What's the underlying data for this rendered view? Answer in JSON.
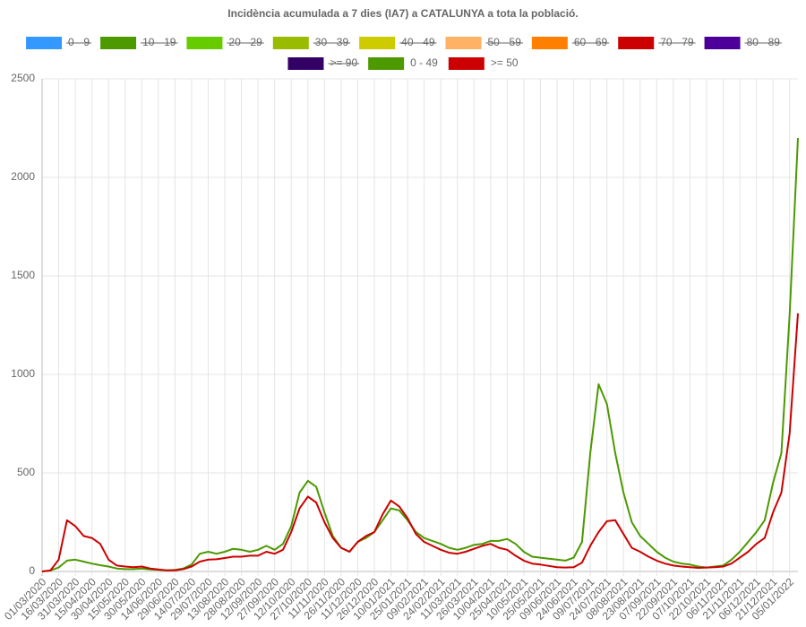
{
  "chart_data": {
    "type": "line",
    "title": "Incidència acumulada a 7 dies (IA7) a CATALUNYA a tota la població.",
    "categories": [
      "01/03/2020",
      null,
      "16/03/2020",
      null,
      "31/03/2020",
      null,
      "15/04/2020",
      null,
      "30/04/2020",
      null,
      "15/05/2020",
      null,
      "30/05/2020",
      null,
      "14/06/2020",
      null,
      "29/06/2020",
      null,
      "14/07/2020",
      null,
      "29/07/2020",
      null,
      "13/08/2020",
      null,
      "28/08/2020",
      null,
      "12/09/2020",
      null,
      "27/09/2020",
      null,
      "12/10/2020",
      null,
      "27/10/2020",
      null,
      "11/11/2020",
      null,
      "26/11/2020",
      null,
      "11/12/2020",
      null,
      "26/12/2020",
      null,
      "10/01/2021",
      null,
      "25/01/2021",
      null,
      "09/02/2021",
      null,
      "24/02/2021",
      null,
      "11/03/2021",
      null,
      "26/03/2021",
      null,
      "10/04/2021",
      null,
      "25/04/2021",
      null,
      "10/05/2021",
      null,
      "25/05/2021",
      null,
      "09/06/2021",
      null,
      "24/06/2021",
      null,
      "09/07/2021",
      null,
      "24/07/2021",
      null,
      "08/08/2021",
      null,
      "23/08/2021",
      null,
      "07/09/2021",
      null,
      "22/09/2021",
      null,
      "07/10/2021",
      null,
      "22/10/2021",
      null,
      "06/11/2021",
      null,
      "21/11/2021",
      null,
      "06/12/2021",
      null,
      "21/12/2021",
      null,
      "05/01/2022",
      null
    ],
    "series": [
      {
        "name": "0 - 9",
        "color": "#3399ff",
        "hidden": true
      },
      {
        "name": "10 - 19",
        "color": "#4c9900",
        "hidden": true
      },
      {
        "name": "20 - 29",
        "color": "#66cc00",
        "hidden": true
      },
      {
        "name": "30 - 39",
        "color": "#99bb00",
        "hidden": true
      },
      {
        "name": "40 - 49",
        "color": "#cccc00",
        "hidden": true
      },
      {
        "name": "50 - 59",
        "color": "#ffb266",
        "hidden": true
      },
      {
        "name": "60 - 69",
        "color": "#ff8000",
        "hidden": true
      },
      {
        "name": "70 - 79",
        "color": "#cc0000",
        "hidden": true
      },
      {
        "name": "80 - 89",
        "color": "#4c0099",
        "hidden": true
      },
      {
        "name": ">= 90",
        "color": "#330066",
        "hidden": true
      },
      {
        "name": "0 - 49",
        "color": "#4c9900",
        "values": [
          0,
          5,
          20,
          55,
          60,
          50,
          40,
          32,
          25,
          15,
          12,
          12,
          15,
          10,
          8,
          6,
          8,
          15,
          35,
          90,
          100,
          90,
          100,
          115,
          110,
          100,
          110,
          130,
          110,
          140,
          230,
          400,
          460,
          430,
          300,
          180,
          120,
          100,
          150,
          170,
          200,
          260,
          320,
          310,
          260,
          200,
          170,
          155,
          140,
          120,
          110,
          120,
          135,
          140,
          155,
          155,
          165,
          140,
          100,
          75,
          70,
          65,
          60,
          55,
          70,
          150,
          600,
          950,
          850,
          600,
          400,
          250,
          180,
          140,
          100,
          70,
          50,
          40,
          35,
          25,
          20,
          25,
          30,
          60,
          100,
          150,
          200,
          260,
          450,
          600,
          1300,
          2200
        ]
      },
      {
        "name": ">= 50",
        "color": "#cc0000",
        "values": [
          0,
          5,
          60,
          260,
          230,
          180,
          170,
          140,
          60,
          30,
          25,
          22,
          25,
          15,
          10,
          6,
          6,
          12,
          25,
          50,
          60,
          62,
          68,
          75,
          75,
          80,
          80,
          100,
          90,
          110,
          200,
          320,
          380,
          350,
          250,
          170,
          120,
          100,
          150,
          180,
          200,
          290,
          360,
          330,
          270,
          190,
          150,
          130,
          110,
          95,
          90,
          100,
          115,
          130,
          140,
          120,
          110,
          80,
          55,
          40,
          35,
          28,
          22,
          20,
          22,
          45,
          130,
          200,
          255,
          260,
          190,
          120,
          100,
          75,
          55,
          40,
          30,
          25,
          22,
          18,
          20,
          22,
          25,
          40,
          70,
          100,
          140,
          170,
          300,
          400,
          700,
          1310
        ]
      }
    ],
    "ylim": [
      0,
      2500
    ],
    "yticks": [
      0,
      500,
      1000,
      1500,
      2000,
      2500
    ],
    "grid": true
  }
}
